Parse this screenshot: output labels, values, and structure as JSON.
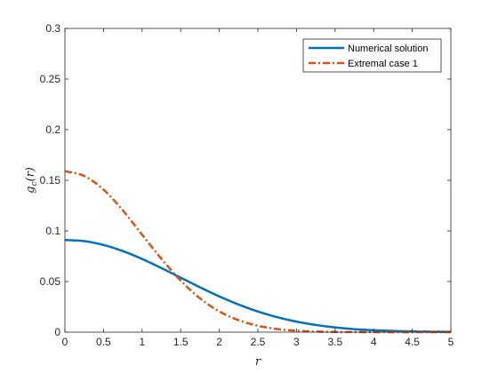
{
  "chart_data": {
    "type": "line",
    "title": "",
    "xlabel": "r",
    "ylabel": "g_c(r)",
    "xlim": [
      0,
      5
    ],
    "ylim": [
      0,
      0.3
    ],
    "xticks": [
      "0",
      "0.5",
      "1",
      "1.5",
      "2",
      "2.5",
      "3",
      "3.5",
      "4",
      "4.5",
      "5"
    ],
    "yticks": [
      "0",
      "0.05",
      "0.1",
      "0.15",
      "0.2",
      "0.25",
      "0.3"
    ],
    "grid": false,
    "legend_position": "top-right",
    "series": [
      {
        "name": "Numerical solution",
        "color": "#0072BD",
        "style": "solid",
        "x": [
          0,
          0.25,
          0.5,
          0.75,
          1,
          1.25,
          1.5,
          1.75,
          2,
          2.25,
          2.5,
          2.75,
          3,
          3.25,
          3.5,
          3.75,
          4,
          4.5,
          5
        ],
        "y": [
          0.091,
          0.0899,
          0.0861,
          0.0801,
          0.0723,
          0.0633,
          0.0538,
          0.0443,
          0.0353,
          0.0273,
          0.0204,
          0.0148,
          0.0104,
          0.0071,
          0.0047,
          0.003,
          0.0019,
          0.0007,
          0.0003
        ]
      },
      {
        "name": "Extremal case 1",
        "color": "#D95319",
        "style": "dash-dot",
        "x": [
          0,
          0.25,
          0.5,
          0.75,
          1,
          1.25,
          1.5,
          1.75,
          2,
          2.25,
          2.5,
          2.75,
          3,
          3.25,
          3.5,
          3.75,
          4,
          4.5,
          5
        ],
        "y": [
          0.159,
          0.1543,
          0.1408,
          0.1203,
          0.0963,
          0.0725,
          0.0509,
          0.0334,
          0.0205,
          0.0118,
          0.0063,
          0.0031,
          0.0014,
          0.0006,
          0.0002,
          0.0001,
          0,
          0,
          0
        ]
      }
    ]
  }
}
